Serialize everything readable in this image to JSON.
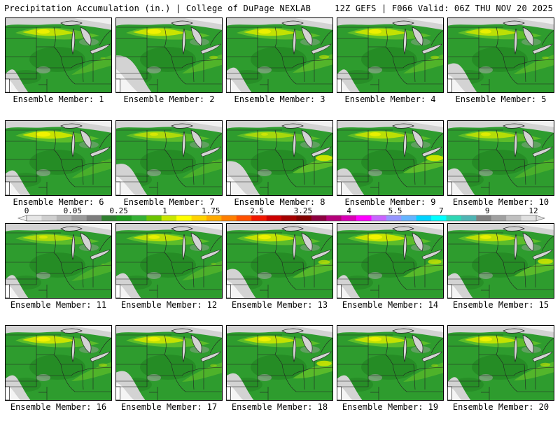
{
  "header": {
    "title_left": "Precipitation Accumulation (in.) | College of DuPage NEXLAB",
    "title_right": "12Z GEFS | F066 Valid: 06Z THU NOV 20 2025"
  },
  "caption_prefix": "Ensemble Member: ",
  "members": [
    {
      "label": "Ensemble Member: 1",
      "north_band": 0.9,
      "east_band": 0.3,
      "dry_west": 0.3
    },
    {
      "label": "Ensemble Member: 2",
      "north_band": 1.0,
      "east_band": 0.5,
      "dry_west": 0.9
    },
    {
      "label": "Ensemble Member: 3",
      "north_band": 0.9,
      "east_band": 0.6,
      "dry_west": 0.4
    },
    {
      "label": "Ensemble Member: 4",
      "north_band": 0.9,
      "east_band": 0.5,
      "dry_west": 0.3
    },
    {
      "label": "Ensemble Member: 5",
      "north_band": 0.8,
      "east_band": 0.4,
      "dry_west": 0.6
    },
    {
      "label": "Ensemble Member: 6",
      "north_band": 1.0,
      "east_band": 0.2,
      "dry_west": 0.4
    },
    {
      "label": "Ensemble Member: 7",
      "north_band": 0.6,
      "east_band": 0.2,
      "dry_west": 0.7
    },
    {
      "label": "Ensemble Member: 8",
      "north_band": 0.5,
      "east_band": 1.0,
      "dry_west": 0.8
    },
    {
      "label": "Ensemble Member: 9",
      "north_band": 0.8,
      "east_band": 1.0,
      "dry_west": 0.5
    },
    {
      "label": "Ensemble Member: 10",
      "north_band": 0.7,
      "east_band": 0.2,
      "dry_west": 0.5
    },
    {
      "label": "Ensemble Member: 11",
      "north_band": 0.6,
      "east_band": 0.2,
      "dry_west": 0.3
    },
    {
      "label": "Ensemble Member: 12",
      "north_band": 0.8,
      "east_band": 0.3,
      "dry_west": 0.4
    },
    {
      "label": "Ensemble Member: 13",
      "north_band": 0.9,
      "east_band": 0.7,
      "dry_west": 0.6
    },
    {
      "label": "Ensemble Member: 14",
      "north_band": 1.0,
      "east_band": 0.8,
      "dry_west": 0.3
    },
    {
      "label": "Ensemble Member: 15",
      "north_band": 0.8,
      "east_band": 0.9,
      "dry_west": 0.4
    },
    {
      "label": "Ensemble Member: 16",
      "north_band": 1.0,
      "east_band": 0.5,
      "dry_west": 0.4
    },
    {
      "label": "Ensemble Member: 17",
      "north_band": 0.9,
      "east_band": 0.4,
      "dry_west": 0.6
    },
    {
      "label": "Ensemble Member: 18",
      "north_band": 0.9,
      "east_band": 0.9,
      "dry_west": 0.5
    },
    {
      "label": "Ensemble Member: 19",
      "north_band": 0.9,
      "east_band": 0.4,
      "dry_west": 0.4
    },
    {
      "label": "Ensemble Member: 20",
      "north_band": 0.9,
      "east_band": 0.6,
      "dry_west": 0.3
    }
  ],
  "colorbar": {
    "tick_labels": [
      "0",
      "0.05",
      "0.25",
      "1",
      "1.75",
      "2.5",
      "3.25",
      "4",
      "5.5",
      "7",
      "9",
      "12"
    ],
    "colors": [
      "#e6e6e6",
      "#cfcfcf",
      "#b5b5b5",
      "#9a9a9a",
      "#7d7d7d",
      "#2f7f2f",
      "#1e9a1e",
      "#35b035",
      "#6cc400",
      "#c8e600",
      "#ffff00",
      "#ffd200",
      "#ffaa00",
      "#ff7f00",
      "#ff5000",
      "#f01800",
      "#cc0000",
      "#a40000",
      "#800000",
      "#8c0040",
      "#b4007a",
      "#d800b4",
      "#ff00ff",
      "#c864ff",
      "#9696ff",
      "#64b4ff",
      "#00d2ff",
      "#00ffff",
      "#2fd6b4",
      "#4fb4b4",
      "#808080",
      "#a0a0a0",
      "#c0c0c0",
      "#e0e0e0"
    ]
  },
  "palette": {
    "land_green": "#2e9c2e",
    "dark_green": "#1f7f1f",
    "light_green": "#5cbc2a",
    "yellow_green": "#c9e400",
    "yellow": "#f2f200",
    "gray_light": "#d3d3d3",
    "gray_mid": "#a9a9a9",
    "border": "#222222"
  }
}
